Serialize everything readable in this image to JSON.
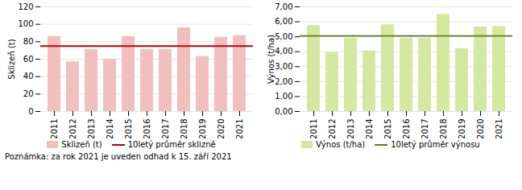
{
  "chart_data": [
    {
      "type": "bar",
      "categories": [
        "2011",
        "2012",
        "2013",
        "2014",
        "2015",
        "2016",
        "2017",
        "2018",
        "2019",
        "2020",
        "2021"
      ],
      "series": [
        {
          "name": "Sklizeň (t)",
          "color": "#F2BFBF",
          "values": [
            86,
            57,
            71,
            60,
            86,
            71,
            71,
            96,
            63,
            85,
            87
          ]
        }
      ],
      "average": {
        "name": "10letý průměr sklizně",
        "color": "#C00000",
        "value": 75
      },
      "y_label": "Sklizeň (t)",
      "ylim": [
        0,
        120
      ],
      "yticks": [
        0,
        20,
        40,
        60,
        80,
        100,
        120
      ],
      "grid": true,
      "legend": "bottom"
    },
    {
      "type": "bar",
      "categories": [
        "2011",
        "2012",
        "2013",
        "2014",
        "2015",
        "2016",
        "2017",
        "2018",
        "2019",
        "2020",
        "2021"
      ],
      "series": [
        {
          "name": "Výnos (t/ha)",
          "color": "#D5E8A0",
          "values": [
            5.75,
            3.95,
            4.9,
            4.05,
            5.8,
            4.9,
            4.9,
            6.5,
            4.2,
            5.65,
            5.7
          ]
        }
      ],
      "average": {
        "name": "10letý průměr výnosu",
        "color": "#5C7A20",
        "value": 5.05
      },
      "y_label": "Výnos (t/ha)",
      "ylim": [
        0.0,
        7.0
      ],
      "yticks": [
        {
          "value": 0.0,
          "label": "0,00"
        },
        {
          "value": 1.0,
          "label": "1,00"
        },
        {
          "value": 2.0,
          "label": "2,00"
        },
        {
          "value": 3.0,
          "label": "3,00"
        },
        {
          "value": 4.0,
          "label": "4,00"
        },
        {
          "value": 5.0,
          "label": "5,00"
        },
        {
          "value": 6.0,
          "label": "6,00"
        },
        {
          "value": 7.0,
          "label": "7,00"
        }
      ],
      "grid": true,
      "legend": "bottom"
    }
  ],
  "footnote": "Poznámka: za rok 2021 je uveden odhad k 15. září 2021"
}
